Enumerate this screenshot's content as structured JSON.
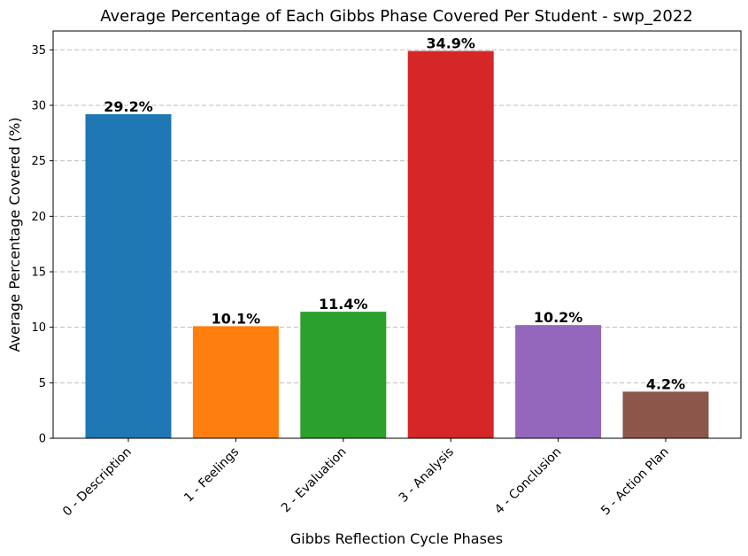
{
  "chart_data": {
    "type": "bar",
    "title": "Average Percentage of Each Gibbs Phase Covered Per Student - swp_2022",
    "xlabel": "Gibbs Reflection Cycle Phases",
    "ylabel": "Average Percentage Covered (%)",
    "categories": [
      "0 - Description",
      "1 - Feelings",
      "2 - Evaluation",
      "3 - Analysis",
      "4 - Conclusion",
      "5 - Action Plan"
    ],
    "values": [
      29.2,
      10.1,
      11.4,
      34.9,
      10.2,
      4.2
    ],
    "data_labels": [
      "29.2%",
      "10.1%",
      "11.4%",
      "34.9%",
      "10.2%",
      "4.2%"
    ],
    "colors": [
      "#1f77b4",
      "#ff7f0e",
      "#2ca02c",
      "#d62728",
      "#9467bd",
      "#8c564b"
    ],
    "ylim": [
      0,
      36.7
    ],
    "yticks": [
      0,
      5,
      10,
      15,
      20,
      25,
      30,
      35
    ],
    "grid": "y-dashed",
    "xtick_rotation": "45"
  }
}
